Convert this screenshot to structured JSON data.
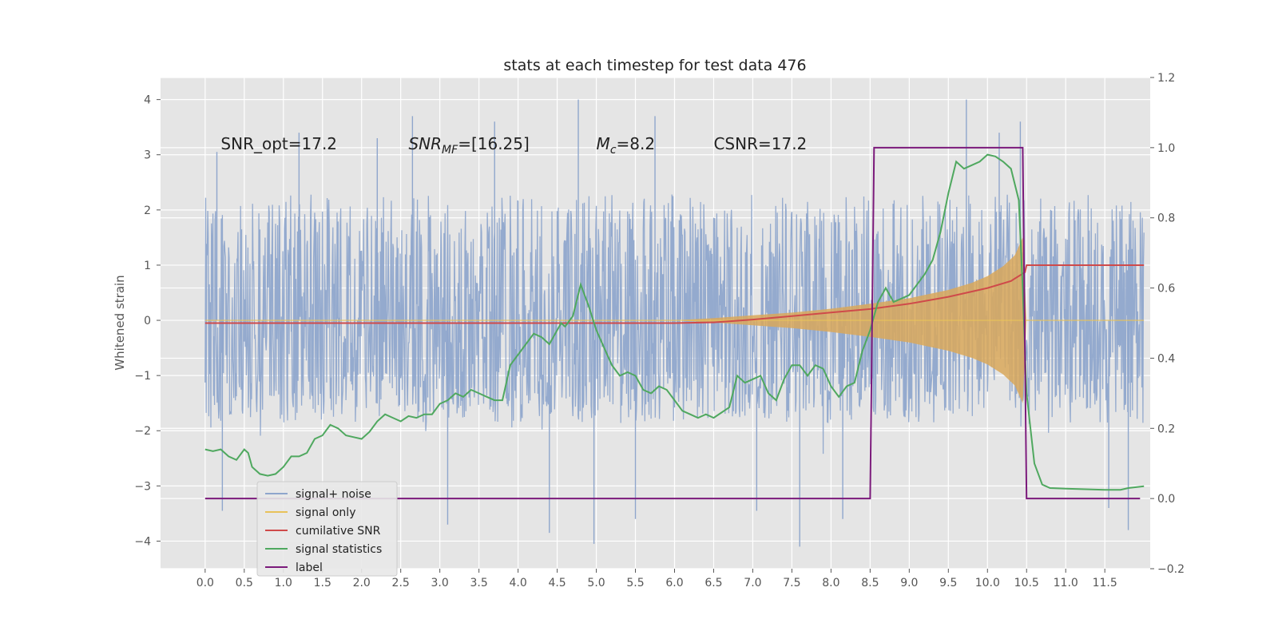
{
  "chart_data": {
    "type": "line",
    "title": "stats at each timestep for test data 476",
    "ylabel": "Whitened strain",
    "xlabel": "",
    "xlim": [
      -0.57,
      12.08
    ],
    "ylim": [
      -4.5,
      4.4
    ],
    "y2lim": [
      -0.2,
      1.2
    ],
    "xticks": [
      "0.0",
      "0.5",
      "1.0",
      "1.5",
      "2.0",
      "2.5",
      "3.0",
      "3.5",
      "4.0",
      "4.5",
      "5.0",
      "5.5",
      "6.0",
      "6.5",
      "7.0",
      "7.5",
      "8.0",
      "8.5",
      "9.0",
      "9.5",
      "10.0",
      "10.5",
      "11.0",
      "11.5"
    ],
    "yticks": [
      "4",
      "3",
      "2",
      "1",
      "0",
      "−1",
      "−2",
      "−3",
      "−4"
    ],
    "y2ticks": [
      "1.2",
      "1.0",
      "0.8",
      "0.6",
      "0.4",
      "0.2",
      "0.0",
      "−0.2"
    ],
    "grid": true,
    "legend_position": "lower-left",
    "annotations": [
      {
        "label": "SNR_opt=17.2",
        "x": 0.2,
        "y": 3.2
      },
      {
        "label": "SNR",
        "sub": "MF",
        "tail": "=[16.25]",
        "x": 2.6,
        "y": 3.2
      },
      {
        "label": "M",
        "sub": "c",
        "tail": "=8.2",
        "x": 5.0,
        "y": 3.2
      },
      {
        "label": "CSNR=17.2",
        "x": 6.5,
        "y": 3.2
      }
    ],
    "series": [
      {
        "name": "signal+ noise",
        "color": "#8fa6cc",
        "axis": "left",
        "style": "dense-noise",
        "x_range": [
          0.0,
          12.0
        ],
        "band": [
          -1.55,
          1.9
        ],
        "extreme_peaks": [
          {
            "x": 0.22,
            "y": -3.45
          },
          {
            "x": 3.1,
            "y": -3.7
          },
          {
            "x": 4.4,
            "y": -3.85
          },
          {
            "x": 4.97,
            "y": -4.05
          },
          {
            "x": 5.5,
            "y": -3.6
          },
          {
            "x": 7.05,
            "y": -3.45
          },
          {
            "x": 7.6,
            "y": -4.1
          },
          {
            "x": 8.15,
            "y": -3.6
          },
          {
            "x": 11.55,
            "y": -3.4
          },
          {
            "x": 11.8,
            "y": -3.8
          },
          {
            "x": 4.77,
            "y": 4.0
          },
          {
            "x": 9.73,
            "y": 4.0
          },
          {
            "x": 10.15,
            "y": 3.4
          },
          {
            "x": 10.42,
            "y": 3.6
          },
          {
            "x": 2.65,
            "y": 3.7
          },
          {
            "x": 2.2,
            "y": 3.3
          },
          {
            "x": 3.7,
            "y": 3.6
          },
          {
            "x": 5.75,
            "y": 3.7
          },
          {
            "x": 1.2,
            "y": 3.4
          },
          {
            "x": 0.15,
            "y": 3.05
          }
        ]
      },
      {
        "name": "signal only",
        "color": "#e8c25a",
        "fill": "#d9a85a",
        "axis": "left",
        "envelope": [
          {
            "x": 6.0,
            "a": 0.0
          },
          {
            "x": 6.5,
            "a": 0.04
          },
          {
            "x": 7.0,
            "a": 0.09
          },
          {
            "x": 7.5,
            "a": 0.14
          },
          {
            "x": 8.0,
            "a": 0.21
          },
          {
            "x": 8.5,
            "a": 0.3
          },
          {
            "x": 9.0,
            "a": 0.4
          },
          {
            "x": 9.5,
            "a": 0.55
          },
          {
            "x": 9.8,
            "a": 0.68
          },
          {
            "x": 10.0,
            "a": 0.8
          },
          {
            "x": 10.2,
            "a": 0.98
          },
          {
            "x": 10.35,
            "a": 1.18
          },
          {
            "x": 10.45,
            "a": 1.5
          },
          {
            "x": 10.5,
            "a": 0.0
          }
        ]
      },
      {
        "name": "cumilative SNR",
        "color": "#cf4a4a",
        "axis": "right",
        "points": [
          {
            "x": 0.0,
            "y": 0.5
          },
          {
            "x": 6.0,
            "y": 0.5
          },
          {
            "x": 6.5,
            "y": 0.502
          },
          {
            "x": 7.0,
            "y": 0.51
          },
          {
            "x": 7.5,
            "y": 0.52
          },
          {
            "x": 8.0,
            "y": 0.53
          },
          {
            "x": 8.5,
            "y": 0.54
          },
          {
            "x": 9.0,
            "y": 0.555
          },
          {
            "x": 9.5,
            "y": 0.575
          },
          {
            "x": 10.0,
            "y": 0.6
          },
          {
            "x": 10.3,
            "y": 0.62
          },
          {
            "x": 10.48,
            "y": 0.645
          },
          {
            "x": 10.5,
            "y": 0.665
          },
          {
            "x": 12.0,
            "y": 0.665
          }
        ]
      },
      {
        "name": "signal statistics",
        "color": "#4fa85f",
        "axis": "right",
        "points": [
          {
            "x": 0.0,
            "y": 0.14
          },
          {
            "x": 0.1,
            "y": 0.135
          },
          {
            "x": 0.2,
            "y": 0.14
          },
          {
            "x": 0.3,
            "y": 0.12
          },
          {
            "x": 0.4,
            "y": 0.11
          },
          {
            "x": 0.5,
            "y": 0.14
          },
          {
            "x": 0.55,
            "y": 0.13
          },
          {
            "x": 0.6,
            "y": 0.09
          },
          {
            "x": 0.7,
            "y": 0.07
          },
          {
            "x": 0.8,
            "y": 0.065
          },
          {
            "x": 0.9,
            "y": 0.07
          },
          {
            "x": 1.0,
            "y": 0.09
          },
          {
            "x": 1.1,
            "y": 0.12
          },
          {
            "x": 1.2,
            "y": 0.12
          },
          {
            "x": 1.3,
            "y": 0.13
          },
          {
            "x": 1.4,
            "y": 0.17
          },
          {
            "x": 1.5,
            "y": 0.18
          },
          {
            "x": 1.6,
            "y": 0.21
          },
          {
            "x": 1.7,
            "y": 0.2
          },
          {
            "x": 1.8,
            "y": 0.18
          },
          {
            "x": 1.9,
            "y": 0.175
          },
          {
            "x": 2.0,
            "y": 0.17
          },
          {
            "x": 2.1,
            "y": 0.19
          },
          {
            "x": 2.2,
            "y": 0.22
          },
          {
            "x": 2.3,
            "y": 0.24
          },
          {
            "x": 2.4,
            "y": 0.23
          },
          {
            "x": 2.5,
            "y": 0.22
          },
          {
            "x": 2.6,
            "y": 0.235
          },
          {
            "x": 2.7,
            "y": 0.23
          },
          {
            "x": 2.8,
            "y": 0.24
          },
          {
            "x": 2.9,
            "y": 0.24
          },
          {
            "x": 3.0,
            "y": 0.27
          },
          {
            "x": 3.1,
            "y": 0.28
          },
          {
            "x": 3.2,
            "y": 0.3
          },
          {
            "x": 3.3,
            "y": 0.29
          },
          {
            "x": 3.4,
            "y": 0.31
          },
          {
            "x": 3.5,
            "y": 0.3
          },
          {
            "x": 3.6,
            "y": 0.29
          },
          {
            "x": 3.7,
            "y": 0.28
          },
          {
            "x": 3.8,
            "y": 0.28
          },
          {
            "x": 3.85,
            "y": 0.33
          },
          {
            "x": 3.9,
            "y": 0.38
          },
          {
            "x": 4.0,
            "y": 0.41
          },
          {
            "x": 4.1,
            "y": 0.44
          },
          {
            "x": 4.2,
            "y": 0.47
          },
          {
            "x": 4.3,
            "y": 0.46
          },
          {
            "x": 4.4,
            "y": 0.44
          },
          {
            "x": 4.5,
            "y": 0.48
          },
          {
            "x": 4.55,
            "y": 0.5
          },
          {
            "x": 4.6,
            "y": 0.49
          },
          {
            "x": 4.7,
            "y": 0.52
          },
          {
            "x": 4.8,
            "y": 0.61
          },
          {
            "x": 4.9,
            "y": 0.55
          },
          {
            "x": 5.0,
            "y": 0.48
          },
          {
            "x": 5.1,
            "y": 0.43
          },
          {
            "x": 5.2,
            "y": 0.38
          },
          {
            "x": 5.3,
            "y": 0.35
          },
          {
            "x": 5.4,
            "y": 0.36
          },
          {
            "x": 5.5,
            "y": 0.35
          },
          {
            "x": 5.6,
            "y": 0.31
          },
          {
            "x": 5.7,
            "y": 0.3
          },
          {
            "x": 5.8,
            "y": 0.32
          },
          {
            "x": 5.9,
            "y": 0.31
          },
          {
            "x": 6.0,
            "y": 0.28
          },
          {
            "x": 6.1,
            "y": 0.25
          },
          {
            "x": 6.2,
            "y": 0.24
          },
          {
            "x": 6.3,
            "y": 0.23
          },
          {
            "x": 6.4,
            "y": 0.24
          },
          {
            "x": 6.5,
            "y": 0.23
          },
          {
            "x": 6.6,
            "y": 0.245
          },
          {
            "x": 6.7,
            "y": 0.26
          },
          {
            "x": 6.8,
            "y": 0.35
          },
          {
            "x": 6.9,
            "y": 0.33
          },
          {
            "x": 7.0,
            "y": 0.34
          },
          {
            "x": 7.1,
            "y": 0.35
          },
          {
            "x": 7.2,
            "y": 0.3
          },
          {
            "x": 7.3,
            "y": 0.28
          },
          {
            "x": 7.4,
            "y": 0.34
          },
          {
            "x": 7.5,
            "y": 0.38
          },
          {
            "x": 7.6,
            "y": 0.38
          },
          {
            "x": 7.7,
            "y": 0.35
          },
          {
            "x": 7.8,
            "y": 0.38
          },
          {
            "x": 7.9,
            "y": 0.37
          },
          {
            "x": 8.0,
            "y": 0.32
          },
          {
            "x": 8.1,
            "y": 0.29
          },
          {
            "x": 8.2,
            "y": 0.32
          },
          {
            "x": 8.3,
            "y": 0.33
          },
          {
            "x": 8.4,
            "y": 0.42
          },
          {
            "x": 8.5,
            "y": 0.48
          },
          {
            "x": 8.6,
            "y": 0.56
          },
          {
            "x": 8.7,
            "y": 0.6
          },
          {
            "x": 8.8,
            "y": 0.56
          },
          {
            "x": 8.9,
            "y": 0.57
          },
          {
            "x": 9.0,
            "y": 0.58
          },
          {
            "x": 9.1,
            "y": 0.61
          },
          {
            "x": 9.2,
            "y": 0.64
          },
          {
            "x": 9.3,
            "y": 0.68
          },
          {
            "x": 9.4,
            "y": 0.76
          },
          {
            "x": 9.5,
            "y": 0.87
          },
          {
            "x": 9.6,
            "y": 0.96
          },
          {
            "x": 9.7,
            "y": 0.94
          },
          {
            "x": 9.8,
            "y": 0.95
          },
          {
            "x": 9.9,
            "y": 0.96
          },
          {
            "x": 10.0,
            "y": 0.98
          },
          {
            "x": 10.1,
            "y": 0.975
          },
          {
            "x": 10.2,
            "y": 0.96
          },
          {
            "x": 10.3,
            "y": 0.94
          },
          {
            "x": 10.4,
            "y": 0.85
          },
          {
            "x": 10.45,
            "y": 0.6
          },
          {
            "x": 10.5,
            "y": 0.3
          },
          {
            "x": 10.6,
            "y": 0.1
          },
          {
            "x": 10.7,
            "y": 0.04
          },
          {
            "x": 10.8,
            "y": 0.03
          },
          {
            "x": 11.0,
            "y": 0.028
          },
          {
            "x": 11.5,
            "y": 0.025
          },
          {
            "x": 11.7,
            "y": 0.025
          },
          {
            "x": 11.8,
            "y": 0.03
          },
          {
            "x": 12.0,
            "y": 0.035
          }
        ]
      },
      {
        "name": "label",
        "color": "#7b1a7b",
        "axis": "right",
        "points": [
          {
            "x": 0.0,
            "y": 0.0
          },
          {
            "x": 8.5,
            "y": 0.0
          },
          {
            "x": 8.55,
            "y": 1.0
          },
          {
            "x": 10.45,
            "y": 1.0
          },
          {
            "x": 10.5,
            "y": 0.0
          },
          {
            "x": 11.95,
            "y": 0.0
          }
        ]
      }
    ]
  }
}
